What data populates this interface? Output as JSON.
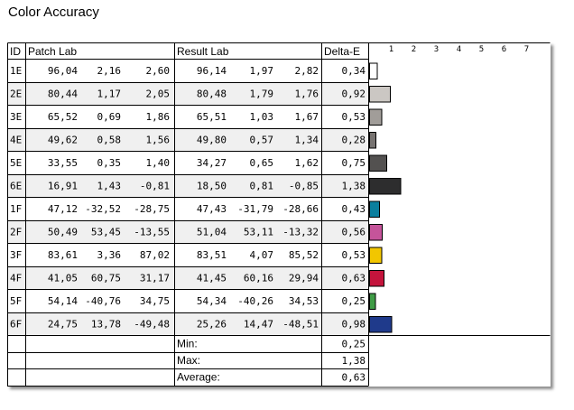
{
  "title": "Color Accuracy",
  "headers": {
    "id": "ID",
    "patch": "Patch Lab",
    "result": "Result Lab",
    "delta": "Delta-E"
  },
  "axis_ticks": [
    "1",
    "2",
    "3",
    "4",
    "5",
    "6",
    "7"
  ],
  "rows": [
    {
      "id": "1E",
      "patch": [
        "96,04",
        "2,16",
        "2,60"
      ],
      "result": [
        "96,14",
        "1,97",
        "2,82"
      ],
      "delta": "0,34",
      "dv": 0.34,
      "color": "#ffffff"
    },
    {
      "id": "2E",
      "patch": [
        "80,44",
        "1,17",
        "2,05"
      ],
      "result": [
        "80,48",
        "1,79",
        "1,76"
      ],
      "delta": "0,92",
      "dv": 0.92,
      "color": "#cbc7c3"
    },
    {
      "id": "3E",
      "patch": [
        "65,52",
        "0,69",
        "1,86"
      ],
      "result": [
        "65,51",
        "1,03",
        "1,67"
      ],
      "delta": "0,53",
      "dv": 0.53,
      "color": "#a19d99"
    },
    {
      "id": "4E",
      "patch": [
        "49,62",
        "0,58",
        "1,56"
      ],
      "result": [
        "49,80",
        "0,57",
        "1,34"
      ],
      "delta": "0,28",
      "dv": 0.28,
      "color": "#777371"
    },
    {
      "id": "5E",
      "patch": [
        "33,55",
        "0,35",
        "1,40"
      ],
      "result": [
        "34,27",
        "0,65",
        "1,62"
      ],
      "delta": "0,75",
      "dv": 0.75,
      "color": "#535150"
    },
    {
      "id": "6E",
      "patch": [
        "16,91",
        "1,43",
        "-0,81"
      ],
      "result": [
        "18,50",
        "0,81",
        "-0,85"
      ],
      "delta": "1,38",
      "dv": 1.38,
      "color": "#2d2d2e"
    },
    {
      "id": "1F",
      "patch": [
        "47,12",
        "-32,52",
        "-28,75"
      ],
      "result": [
        "47,43",
        "-31,79",
        "-28,66"
      ],
      "delta": "0,43",
      "dv": 0.43,
      "color": "#0b7f9e"
    },
    {
      "id": "2F",
      "patch": [
        "50,49",
        "53,45",
        "-13,55"
      ],
      "result": [
        "51,04",
        "53,11",
        "-13,32"
      ],
      "delta": "0,56",
      "dv": 0.56,
      "color": "#c5549a"
    },
    {
      "id": "3F",
      "patch": [
        "83,61",
        "3,36",
        "87,02"
      ],
      "result": [
        "83,51",
        "4,07",
        "85,52"
      ],
      "delta": "0,53",
      "dv": 0.53,
      "color": "#f2c600"
    },
    {
      "id": "4F",
      "patch": [
        "41,05",
        "60,75",
        "31,17"
      ],
      "result": [
        "41,45",
        "60,16",
        "29,94"
      ],
      "delta": "0,63",
      "dv": 0.63,
      "color": "#c4143c"
    },
    {
      "id": "5F",
      "patch": [
        "54,14",
        "-40,76",
        "34,75"
      ],
      "result": [
        "54,34",
        "-40,26",
        "34,53"
      ],
      "delta": "0,25",
      "dv": 0.25,
      "color": "#3f9c46"
    },
    {
      "id": "6F",
      "patch": [
        "24,75",
        "13,78",
        "-49,48"
      ],
      "result": [
        "25,26",
        "14,47",
        "-48,51"
      ],
      "delta": "0,98",
      "dv": 0.98,
      "color": "#1f3a8b"
    }
  ],
  "summary": [
    {
      "label": "Min:",
      "value": "0,25"
    },
    {
      "label": "Max:",
      "value": "1,38"
    },
    {
      "label": "Average:",
      "value": "0,63"
    }
  ],
  "chart_data": {
    "type": "bar",
    "orientation": "horizontal",
    "categories": [
      "1E",
      "2E",
      "3E",
      "4E",
      "5E",
      "6E",
      "1F",
      "2F",
      "3F",
      "4F",
      "5F",
      "6F"
    ],
    "values": [
      0.34,
      0.92,
      0.53,
      0.28,
      0.75,
      1.38,
      0.43,
      0.56,
      0.53,
      0.63,
      0.25,
      0.98
    ],
    "colors": [
      "#ffffff",
      "#cbc7c3",
      "#a19d99",
      "#777371",
      "#535150",
      "#2d2d2e",
      "#0b7f9e",
      "#c5549a",
      "#f2c600",
      "#c4143c",
      "#3f9c46",
      "#1f3a8b"
    ],
    "xlim": [
      0,
      7
    ],
    "xticks": [
      1,
      2,
      3,
      4,
      5,
      6,
      7
    ],
    "grid": false
  }
}
